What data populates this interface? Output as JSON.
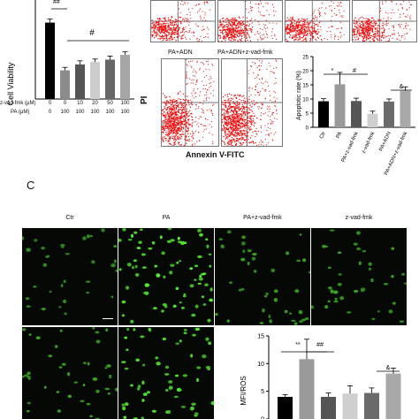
{
  "panel_c_letter": "C",
  "viability_chart": {
    "type": "bar",
    "ylabel": "Cell Viability",
    "significance": [
      "##",
      "#"
    ],
    "row_labels": {
      "zvad": "z-vad-fmk (μM)",
      "pa": "PA (μM)"
    },
    "zvad_values": [
      "0",
      "0",
      "10",
      "20",
      "50",
      "100"
    ],
    "pa_values": [
      "0",
      "100",
      "100",
      "100",
      "100",
      "100"
    ],
    "values": [
      0.64,
      0.24,
      0.29,
      0.31,
      0.33,
      0.37
    ],
    "errors": [
      0.03,
      0.025,
      0.03,
      0.025,
      0.03,
      0.025
    ],
    "colors": [
      "#000000",
      "#8c8c8c",
      "#555555",
      "#cccccc",
      "#666666",
      "#a6a6a6"
    ],
    "ylim": [
      0,
      0.8
    ]
  },
  "flow": {
    "ylabel": "PI",
    "xlabel": "Annexin V-FITC",
    "labels": [
      "PA+ADN",
      "PA+ADN+z-vad-fmk"
    ]
  },
  "apoptosis_chart": {
    "type": "bar",
    "ylabel": "Apoptotic rate (%)",
    "categories": [
      "Ctr",
      "PA",
      "PA+z-vad-fmk",
      "z-vad-fmk",
      "PA+ADN",
      "PA+ADN+z-vad-fmk"
    ],
    "values": [
      9.2,
      15.2,
      9.3,
      4.8,
      9.1,
      12.9
    ],
    "errors": [
      0.9,
      4.2,
      1.0,
      0.9,
      0.9,
      1.4
    ],
    "colors": [
      "#000000",
      "#9a9a9a",
      "#555555",
      "#cfcfcf",
      "#6a6a6a",
      "#a9a9a9"
    ],
    "ticks": [
      "0",
      "5",
      "10",
      "15",
      "20",
      "25"
    ],
    "ylim": [
      0,
      25
    ],
    "significance": [
      "*",
      "#",
      "&"
    ]
  },
  "ros_images": {
    "labels": [
      "Ctr",
      "PA",
      "PA+z-vad-fmk",
      "z-vad-fmk"
    ]
  },
  "ros_chart": {
    "type": "bar",
    "ylabel": "MFI/ROS",
    "values": [
      4.0,
      10.8,
      4.0,
      4.6,
      4.7,
      8.2
    ],
    "errors": [
      0.4,
      3.6,
      0.7,
      1.4,
      0.9,
      1.0
    ],
    "colors": [
      "#000000",
      "#9a9a9a",
      "#555555",
      "#cfcfcf",
      "#6a6a6a",
      "#a9a9a9"
    ],
    "ticks": [
      "0",
      "5",
      "10",
      "15"
    ],
    "ylim": [
      0,
      15
    ],
    "significance": [
      "**",
      "##",
      "&"
    ]
  }
}
